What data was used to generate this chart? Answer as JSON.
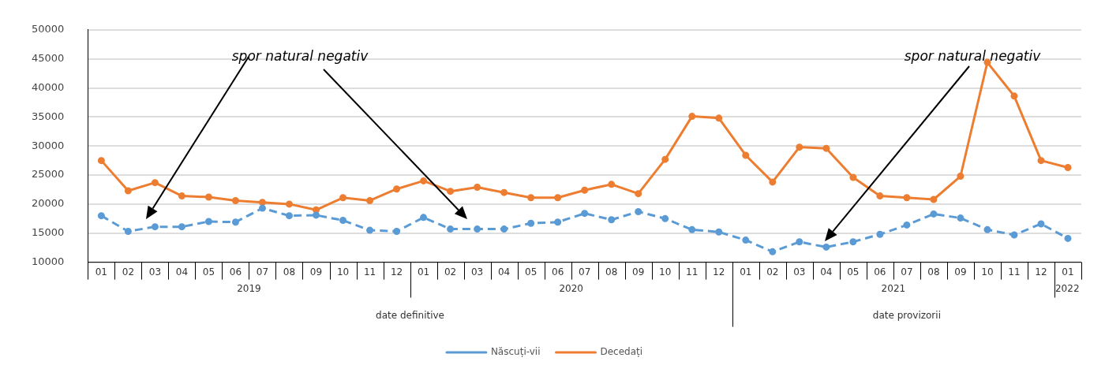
{
  "chart_data": {
    "type": "line",
    "categories": [
      "01",
      "02",
      "03",
      "04",
      "05",
      "06",
      "07",
      "08",
      "09",
      "10",
      "11",
      "12",
      "01",
      "02",
      "03",
      "04",
      "05",
      "06",
      "07",
      "08",
      "09",
      "10",
      "11",
      "12",
      "01",
      "02",
      "03",
      "04",
      "05",
      "06",
      "07",
      "08",
      "09",
      "10",
      "11",
      "12",
      "01"
    ],
    "series": [
      {
        "name": "Născuți-vii",
        "color": "#5b9bd5",
        "line_style": "dashed",
        "values": [
          18000,
          15300,
          16100,
          16100,
          17000,
          16900,
          19300,
          18000,
          18100,
          17200,
          15500,
          15300,
          17700,
          15700,
          15700,
          15700,
          16700,
          16900,
          18400,
          17300,
          18700,
          17500,
          15600,
          15200,
          13800,
          11800,
          13500,
          12600,
          13500,
          14800,
          16400,
          18300,
          17600,
          15600,
          14700,
          16600,
          14100
        ]
      },
      {
        "name": "Decedați",
        "color": "#ed7d31",
        "line_style": "solid",
        "values": [
          27500,
          22300,
          23700,
          21400,
          21200,
          20600,
          20300,
          20000,
          19000,
          21100,
          20600,
          22600,
          24000,
          22200,
          22900,
          22000,
          21100,
          21100,
          22400,
          23400,
          21800,
          27700,
          35100,
          34800,
          28400,
          23800,
          29800,
          29600,
          24600,
          21400,
          21100,
          20800,
          24800,
          44400,
          38600,
          27500,
          26300
        ]
      }
    ],
    "ylim": [
      10000,
      50000
    ],
    "yticks": [
      10000,
      15000,
      20000,
      25000,
      30000,
      35000,
      40000,
      45000,
      50000
    ],
    "grid": "y",
    "legend": "bottom",
    "marker": "circle",
    "annotations": [
      "spor natural negativ",
      "spor natural negativ",
      "2019",
      "2020",
      "2021",
      "2022",
      "date definitive",
      "date provizorii"
    ]
  }
}
